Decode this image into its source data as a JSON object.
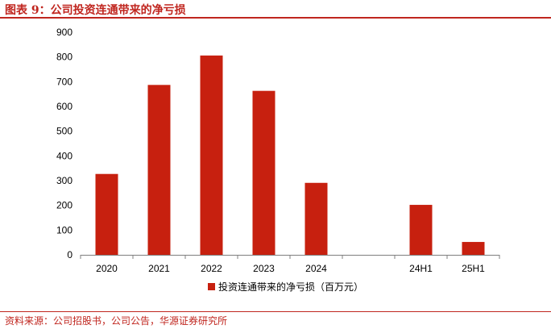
{
  "header": {
    "title": "图表 9：公司投资连通带来的净亏损"
  },
  "footer": {
    "source": "资料来源：公司招股书，公司公告，华源证券研究所"
  },
  "chart_data": {
    "type": "bar",
    "categories": [
      "2020",
      "2021",
      "2022",
      "2023",
      "2024",
      "",
      "24H1",
      "25H1"
    ],
    "series": [
      {
        "name": "投资连通带来的净亏损（百万元）",
        "values": [
          327,
          687,
          806,
          663,
          291,
          null,
          202,
          52
        ]
      }
    ],
    "ylim": [
      0,
      900
    ],
    "yticks": [
      0,
      100,
      200,
      300,
      400,
      500,
      600,
      700,
      800,
      900
    ],
    "grid": false,
    "legend_position": "bottom-center",
    "colors": {
      "bar": "#c7200f",
      "axis": "#7f7f7f"
    }
  }
}
